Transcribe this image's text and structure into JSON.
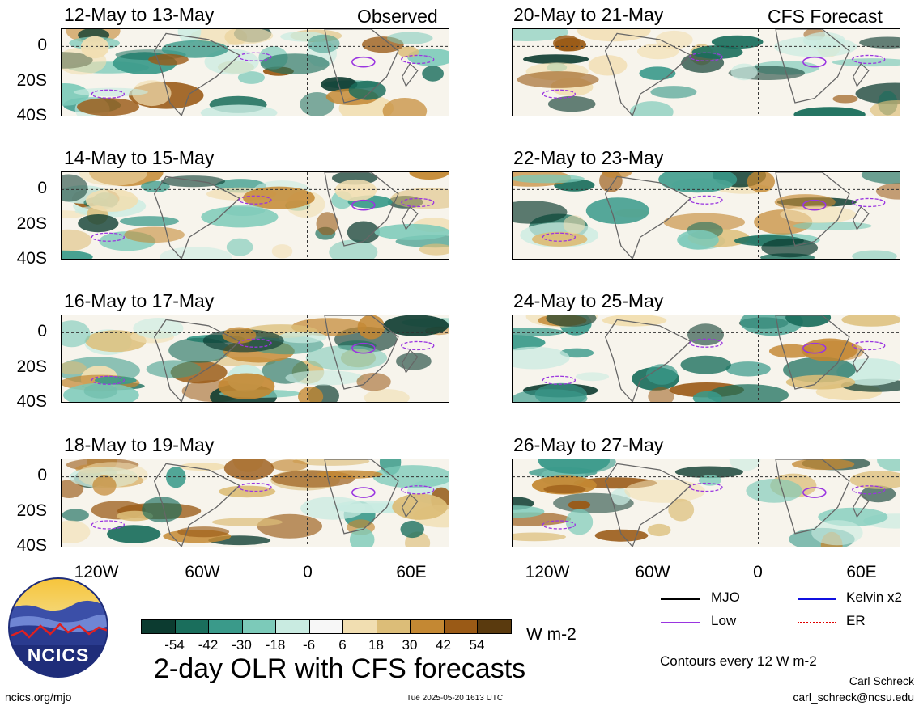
{
  "panels": {
    "left": [
      {
        "title": "12-May to 13-May",
        "label": "Observed"
      },
      {
        "title": "14-May to 15-May",
        "label": ""
      },
      {
        "title": "16-May to 17-May",
        "label": ""
      },
      {
        "title": "18-May to 19-May",
        "label": ""
      }
    ],
    "right": [
      {
        "title": "20-May to 21-May",
        "label": "CFS Forecast"
      },
      {
        "title": "22-May to 23-May",
        "label": ""
      },
      {
        "title": "24-May to 25-May",
        "label": ""
      },
      {
        "title": "26-May to 27-May",
        "label": ""
      }
    ]
  },
  "lat_labels": [
    "0",
    "20S",
    "40S"
  ],
  "lon_labels": [
    "120W",
    "60W",
    "0",
    "60E"
  ],
  "legend": {
    "mjo": "MJO",
    "kelvin": "Kelvin x2",
    "low": "Low",
    "er": "ER",
    "colors": {
      "mjo": "#000000",
      "kelvin": "#1010e0",
      "low": "#9a35e0",
      "er": "#e00000"
    }
  },
  "colorbar": {
    "ticks": [
      "-54",
      "-42",
      "-30",
      "-18",
      "-6",
      "6",
      "18",
      "30",
      "42",
      "54"
    ],
    "units": "W m-2",
    "colors": [
      "#0c3b30",
      "#1a6e5c",
      "#3a9a8a",
      "#7ccab9",
      "#c9ebe1",
      "#f7f7f7",
      "#f1deb1",
      "#dcbd78",
      "#c48833",
      "#9a5a16",
      "#5a3a0e"
    ]
  },
  "main_title": "2-day OLR with CFS forecasts",
  "contours_note": "Contours every 12 W m-2",
  "author": "Carl Schreck",
  "email": "carl_schreck@ncsu.edu",
  "url": "ncics.org/mjo",
  "timestamp": "Tue 2025-05-20 1613 UTC",
  "logo_text": "NCICS"
}
